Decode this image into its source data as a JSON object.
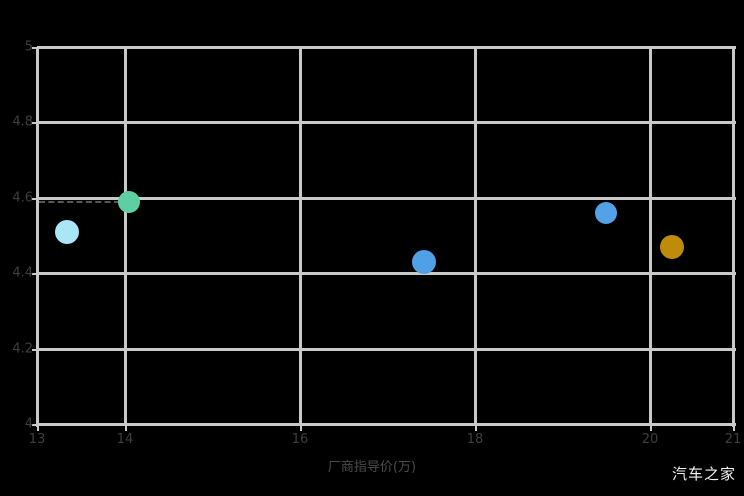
{
  "watermark": "汽车之家",
  "x_axis_title": "厂商指导价(万)",
  "colors": {
    "background": "#000000",
    "gridline": "#c9c9c9",
    "tick_label": "#3e3e3e",
    "axis_title": "#4b4b4b",
    "watermark": "#f2f2f2",
    "leader_line": "#555555"
  },
  "chart_data": {
    "type": "scatter",
    "title": "",
    "xlabel": "厂商指导价(万)",
    "ylabel": "",
    "xlim": [
      13,
      20.95
    ],
    "ylim": [
      4,
      5
    ],
    "grid": true,
    "legend": false,
    "x_ticks": [
      {
        "value": 13,
        "label": "13",
        "grid": false
      },
      {
        "value": 14,
        "label": "14",
        "grid": true
      },
      {
        "value": 16,
        "label": "16",
        "grid": true
      },
      {
        "value": 18,
        "label": "18",
        "grid": true
      },
      {
        "value": 20,
        "label": "20",
        "grid": true
      },
      {
        "value": 20.95,
        "label": "21",
        "grid": false
      }
    ],
    "y_ticks": [
      {
        "value": 5,
        "label": "5",
        "grid": true
      },
      {
        "value": 4.8,
        "label": "4.8",
        "grid": true
      },
      {
        "value": 4.6,
        "label": "4.6",
        "grid": true
      },
      {
        "value": 4.4,
        "label": "4.4",
        "grid": true
      },
      {
        "value": 4.2,
        "label": "4.2",
        "grid": true
      },
      {
        "value": 4,
        "label": "4",
        "grid": true
      }
    ],
    "series": [
      {
        "name": "car-rating-points",
        "points": [
          {
            "x": 13.34,
            "y": 4.51,
            "color": "#a9e6f7",
            "r": 12
          },
          {
            "x": 14.05,
            "y": 4.59,
            "color": "#5ecfa2",
            "r": 11
          },
          {
            "x": 17.42,
            "y": 4.43,
            "color": "#4fa0e6",
            "r": 12
          },
          {
            "x": 19.5,
            "y": 4.56,
            "color": "#53a2e8",
            "r": 11
          },
          {
            "x": 20.25,
            "y": 4.47,
            "color": "#bf8c0a",
            "r": 12
          }
        ]
      }
    ],
    "annotations": [
      {
        "type": "dashed-leader",
        "x_from": 13.02,
        "x_to": 13.95,
        "y": 4.59
      }
    ]
  }
}
